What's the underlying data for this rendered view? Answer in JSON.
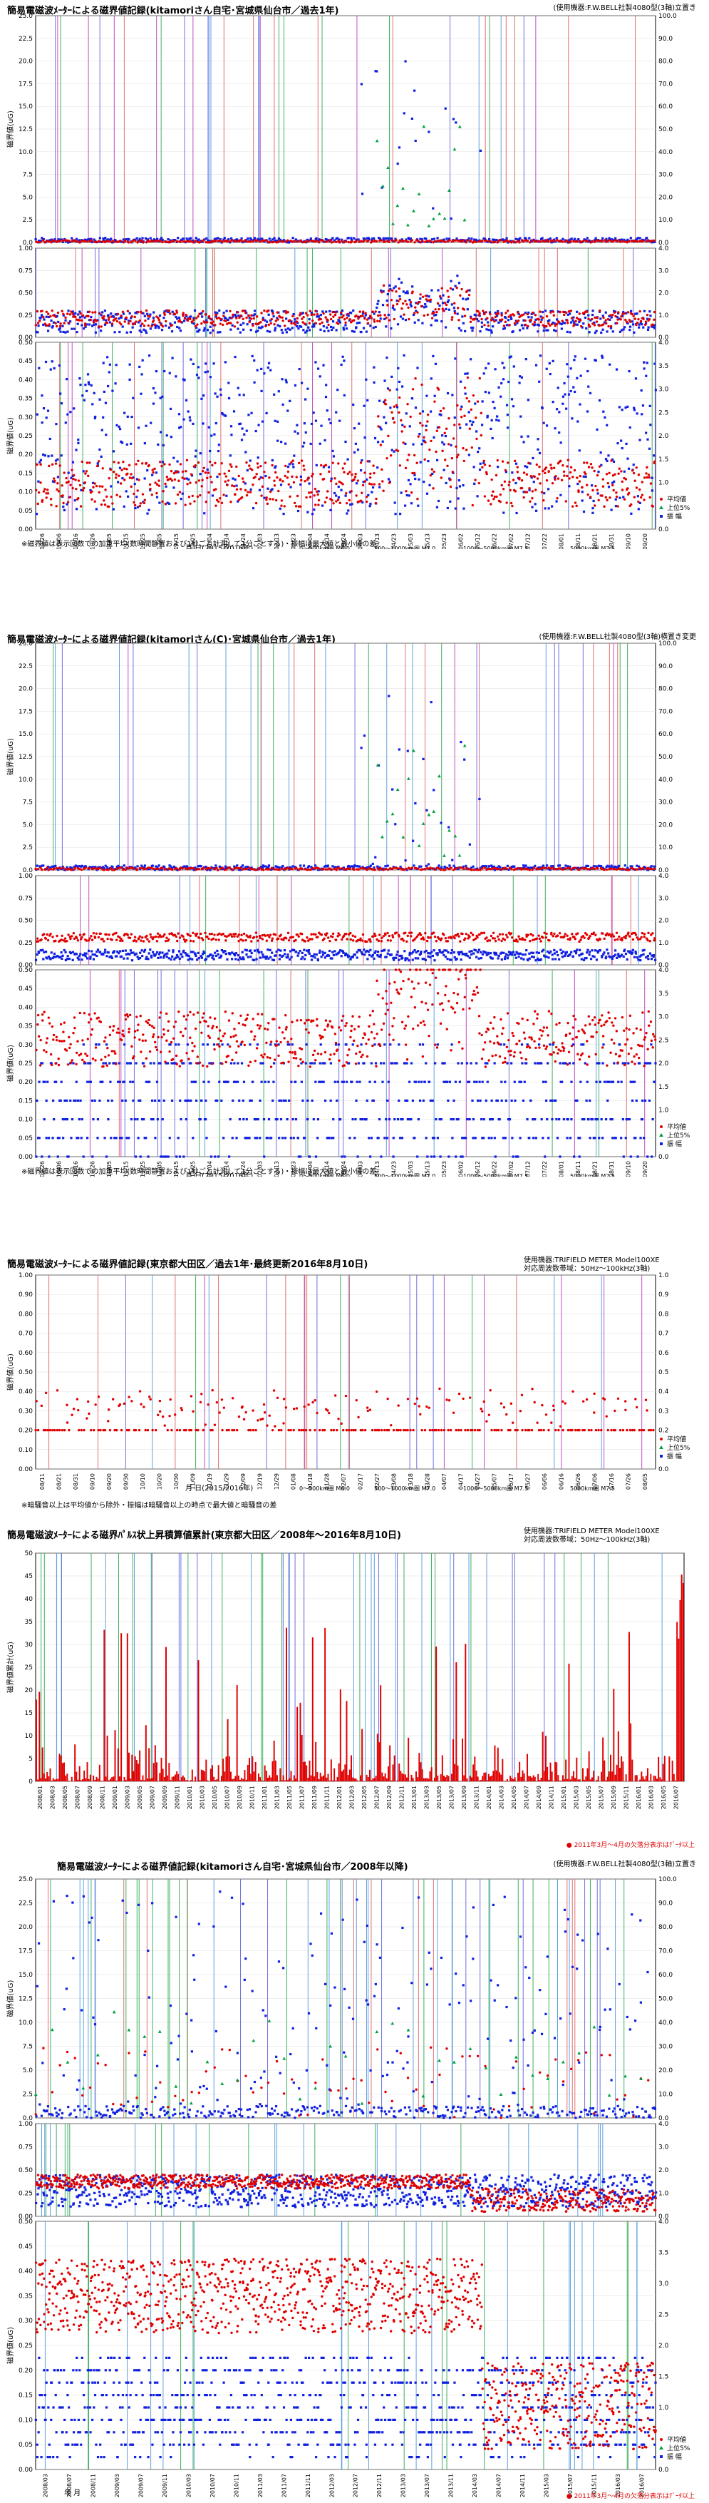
{
  "panels": [
    {
      "id": "p1",
      "title": "簡易電磁波ﾒｰﾀｰによる磁界値記録(kitamoriさん自宅･宮城県仙台市／過去1年)",
      "spec": "(使用機器:F.W.BELL社製4080型(3軸)立置き",
      "xlabel": "月 日(2015/2016年)",
      "note": "※磁界値は表示回数での加重平均(数時間静置および1秒ごと計測して1分ごとする)・振幅は最大値と最小値の差",
      "legend": [
        "平均値",
        "上位5%",
        "振 幅"
      ]
    },
    {
      "id": "p2",
      "title": "簡易電磁波ﾒｰﾀｰによる磁界値記録(kitamoriさん(C)･宮城県仙台市／過去1年)",
      "spec": "(使用機器:F.W.BELL社製4080型(3軸)横置き変更",
      "xlabel": "月 日(2015/2016年)",
      "note": "※磁界値は表示回数での加重平均(数時間静置および1秒ごと計測して1分ごとする)・振幅は最大値と最小値の差",
      "legend": [
        "平均値",
        "上位5%",
        "振 幅"
      ]
    },
    {
      "id": "p3",
      "title": "簡易電磁波ﾒｰﾀｰによる磁界値記録(東京都大田区／過去1年･最終更新2016年8月10日)",
      "spec": "使用機器:TRIFIELD METER Model100XE\n対応周波数帯域：50Hz～100kHz(3軸)",
      "xlabel": "月 日(2015/2016年)",
      "note": "※暗騒音以上は平均値から除外・振幅は暗騒音以上の時点で最大値と暗騒音の差",
      "legend": [
        "平均値",
        "上位5%",
        "振 幅"
      ]
    },
    {
      "id": "p4",
      "title": "簡易電磁波ﾒｰﾀｰによる磁界ﾊﾟﾙｽ状上昇積算値累計(東京都大田区／2008年～2016年8月10日)",
      "spec": "使用機器:TRIFIELD METER Model100XE\n対応周波数帯域：50Hz～100kHz(3軸)",
      "xlabel": "",
      "note": "",
      "rednote": "● 2011年3月～4月の欠落分表示はﾃﾞｰﾀ以上",
      "legend": []
    },
    {
      "id": "p5",
      "title": "簡易電磁波ﾒｰﾀｰによる磁界値記録(kitamoriさん自宅･宮城県仙台市／2008年以降)",
      "spec": "(使用機器:F.W.BELL社製4080型(3軸)立置き",
      "xlabel": "年 月",
      "note": "",
      "rednote": "● 2011年3月～4月の欠落分表示はﾃﾞｰﾀ以上",
      "legend": [
        "平均値",
        "上位5%",
        "振 幅"
      ]
    }
  ],
  "quake_legend": [
    "0～500km圏 M6.0",
    "500～1000km圏 M7.0",
    "1000～5000km圏 M7.5",
    "5000km圏 M7.5"
  ],
  "chart_data": [
    {
      "type": "scatter",
      "title": "簡易電磁波ﾒｰﾀｰによる磁界値記録(kitamoriさん自宅･宮城県仙台市／過去1年)",
      "xlabel": "月 日(2015/2016年)",
      "ylabel": "磁界値(uG)",
      "y2label": "振 幅",
      "categories": [
        "09/26",
        "10/06",
        "10/16",
        "10/26",
        "11/05",
        "11/15",
        "11/25",
        "12/05",
        "12/15",
        "12/25",
        "01/04",
        "01/14",
        "01/24",
        "02/03",
        "02/13",
        "02/23",
        "03/04",
        "03/14",
        "03/24",
        "04/03",
        "04/13",
        "04/23",
        "05/03",
        "05/13",
        "05/23",
        "06/02",
        "06/12",
        "06/22",
        "07/02",
        "07/12",
        "07/22",
        "08/01",
        "08/11",
        "08/21",
        "08/31",
        "09/10",
        "09/20"
      ],
      "ylim_top": [
        0,
        25
      ],
      "ylim_mid": [
        0,
        1.0
      ],
      "ylim_bottom": [
        0,
        0.5
      ],
      "series": [
        {
          "name": "平均値",
          "color": "#e00000"
        },
        {
          "name": "上位5%",
          "color": "#00a040"
        },
        {
          "name": "振 幅",
          "color": "#1020e0"
        }
      ]
    },
    {
      "type": "scatter",
      "title": "簡易電磁波ﾒｰﾀｰによる磁界値記録(kitamoriさん(C)･宮城県仙台市／過去1年)",
      "xlabel": "月 日(2015/2016年)",
      "ylabel": "磁界値(uG)",
      "categories": [
        "09/26",
        "10/06",
        "10/16",
        "10/26",
        "11/05",
        "11/15",
        "11/25",
        "12/05",
        "12/15",
        "12/25",
        "01/04",
        "01/14",
        "01/24",
        "02/03",
        "02/13",
        "02/23",
        "03/04",
        "03/14",
        "03/24",
        "04/03",
        "04/13",
        "04/23",
        "05/03",
        "05/13",
        "05/23",
        "06/02",
        "06/12",
        "06/22",
        "07/02",
        "07/12",
        "07/22",
        "08/01",
        "08/11",
        "08/21",
        "08/31",
        "09/10",
        "09/20"
      ],
      "ylim_top": [
        0,
        25
      ],
      "ylim_mid": [
        0,
        1.0
      ],
      "ylim_bottom": [
        0,
        0.5
      ]
    },
    {
      "type": "scatter",
      "title": "簡易電磁波ﾒｰﾀｰによる磁界値記録(東京都大田区／過去1年･最終更新2016年8月10日)",
      "xlabel": "月 日(2015/2016年)",
      "ylabel": "磁界値(uG)",
      "categories": [
        "08/11",
        "08/21",
        "08/31",
        "09/10",
        "09/20",
        "09/30",
        "10/10",
        "10/20",
        "10/30",
        "11/09",
        "11/19",
        "11/29",
        "12/09",
        "12/19",
        "12/29",
        "01/08",
        "01/18",
        "01/28",
        "02/07",
        "02/17",
        "02/27",
        "03/08",
        "03/18",
        "03/28",
        "04/07",
        "04/17",
        "04/27",
        "05/07",
        "05/17",
        "05/27",
        "06/06",
        "06/16",
        "06/26",
        "07/06",
        "07/16",
        "07/26",
        "08/05"
      ],
      "ylim": [
        0,
        1.0
      ]
    },
    {
      "type": "bar",
      "title": "簡易電磁波ﾒｰﾀｰによる磁界ﾊﾟﾙｽ状上昇積算値累計(東京都大田区／2008年～2016年8月10日)",
      "ylabel": "磁界値累計(uG)",
      "categories": [
        "2008/01",
        "2008/03",
        "2008/05",
        "2008/07",
        "2008/09",
        "2008/11",
        "2009/01",
        "2009/03",
        "2009/05",
        "2009/07",
        "2009/09",
        "2009/11",
        "2010/01",
        "2010/03",
        "2010/05",
        "2010/07",
        "2010/09",
        "2010/11",
        "2011/01",
        "2011/03",
        "2011/05",
        "2011/07",
        "2011/09",
        "2011/11",
        "2012/01",
        "2012/03",
        "2012/05",
        "2012/07",
        "2012/09",
        "2012/11",
        "2013/01",
        "2013/03",
        "2013/05",
        "2013/07",
        "2013/09",
        "2013/11",
        "2014/01",
        "2014/03",
        "2014/05",
        "2014/07",
        "2014/09",
        "2014/11",
        "2015/01",
        "2015/03",
        "2015/05",
        "2015/07",
        "2015/09",
        "2015/11",
        "2016/01",
        "2016/03",
        "2016/05",
        "2016/07"
      ],
      "ylim": [
        0,
        50
      ]
    },
    {
      "type": "scatter",
      "title": "簡易電磁波ﾒｰﾀｰによる磁界値記録(kitamoriさん自宅･宮城県仙台市／2008年以降)",
      "xlabel": "年 月",
      "ylabel": "磁界値(uG)",
      "categories": [
        "2008/03",
        "2008/07",
        "2008/11",
        "2009/03",
        "2009/07",
        "2009/11",
        "2010/03",
        "2010/07",
        "2010/11",
        "2011/03",
        "2011/07",
        "2011/11",
        "2012/03",
        "2012/07",
        "2012/11",
        "2013/03",
        "2013/07",
        "2013/11",
        "2014/03",
        "2014/07",
        "2014/11",
        "2015/03",
        "2015/07",
        "2015/11",
        "2016/03",
        "2016/07"
      ],
      "ylim_top": [
        0,
        25
      ],
      "ylim_mid": [
        0,
        1.0
      ],
      "ylim_bottom": [
        0,
        0.5
      ]
    }
  ]
}
